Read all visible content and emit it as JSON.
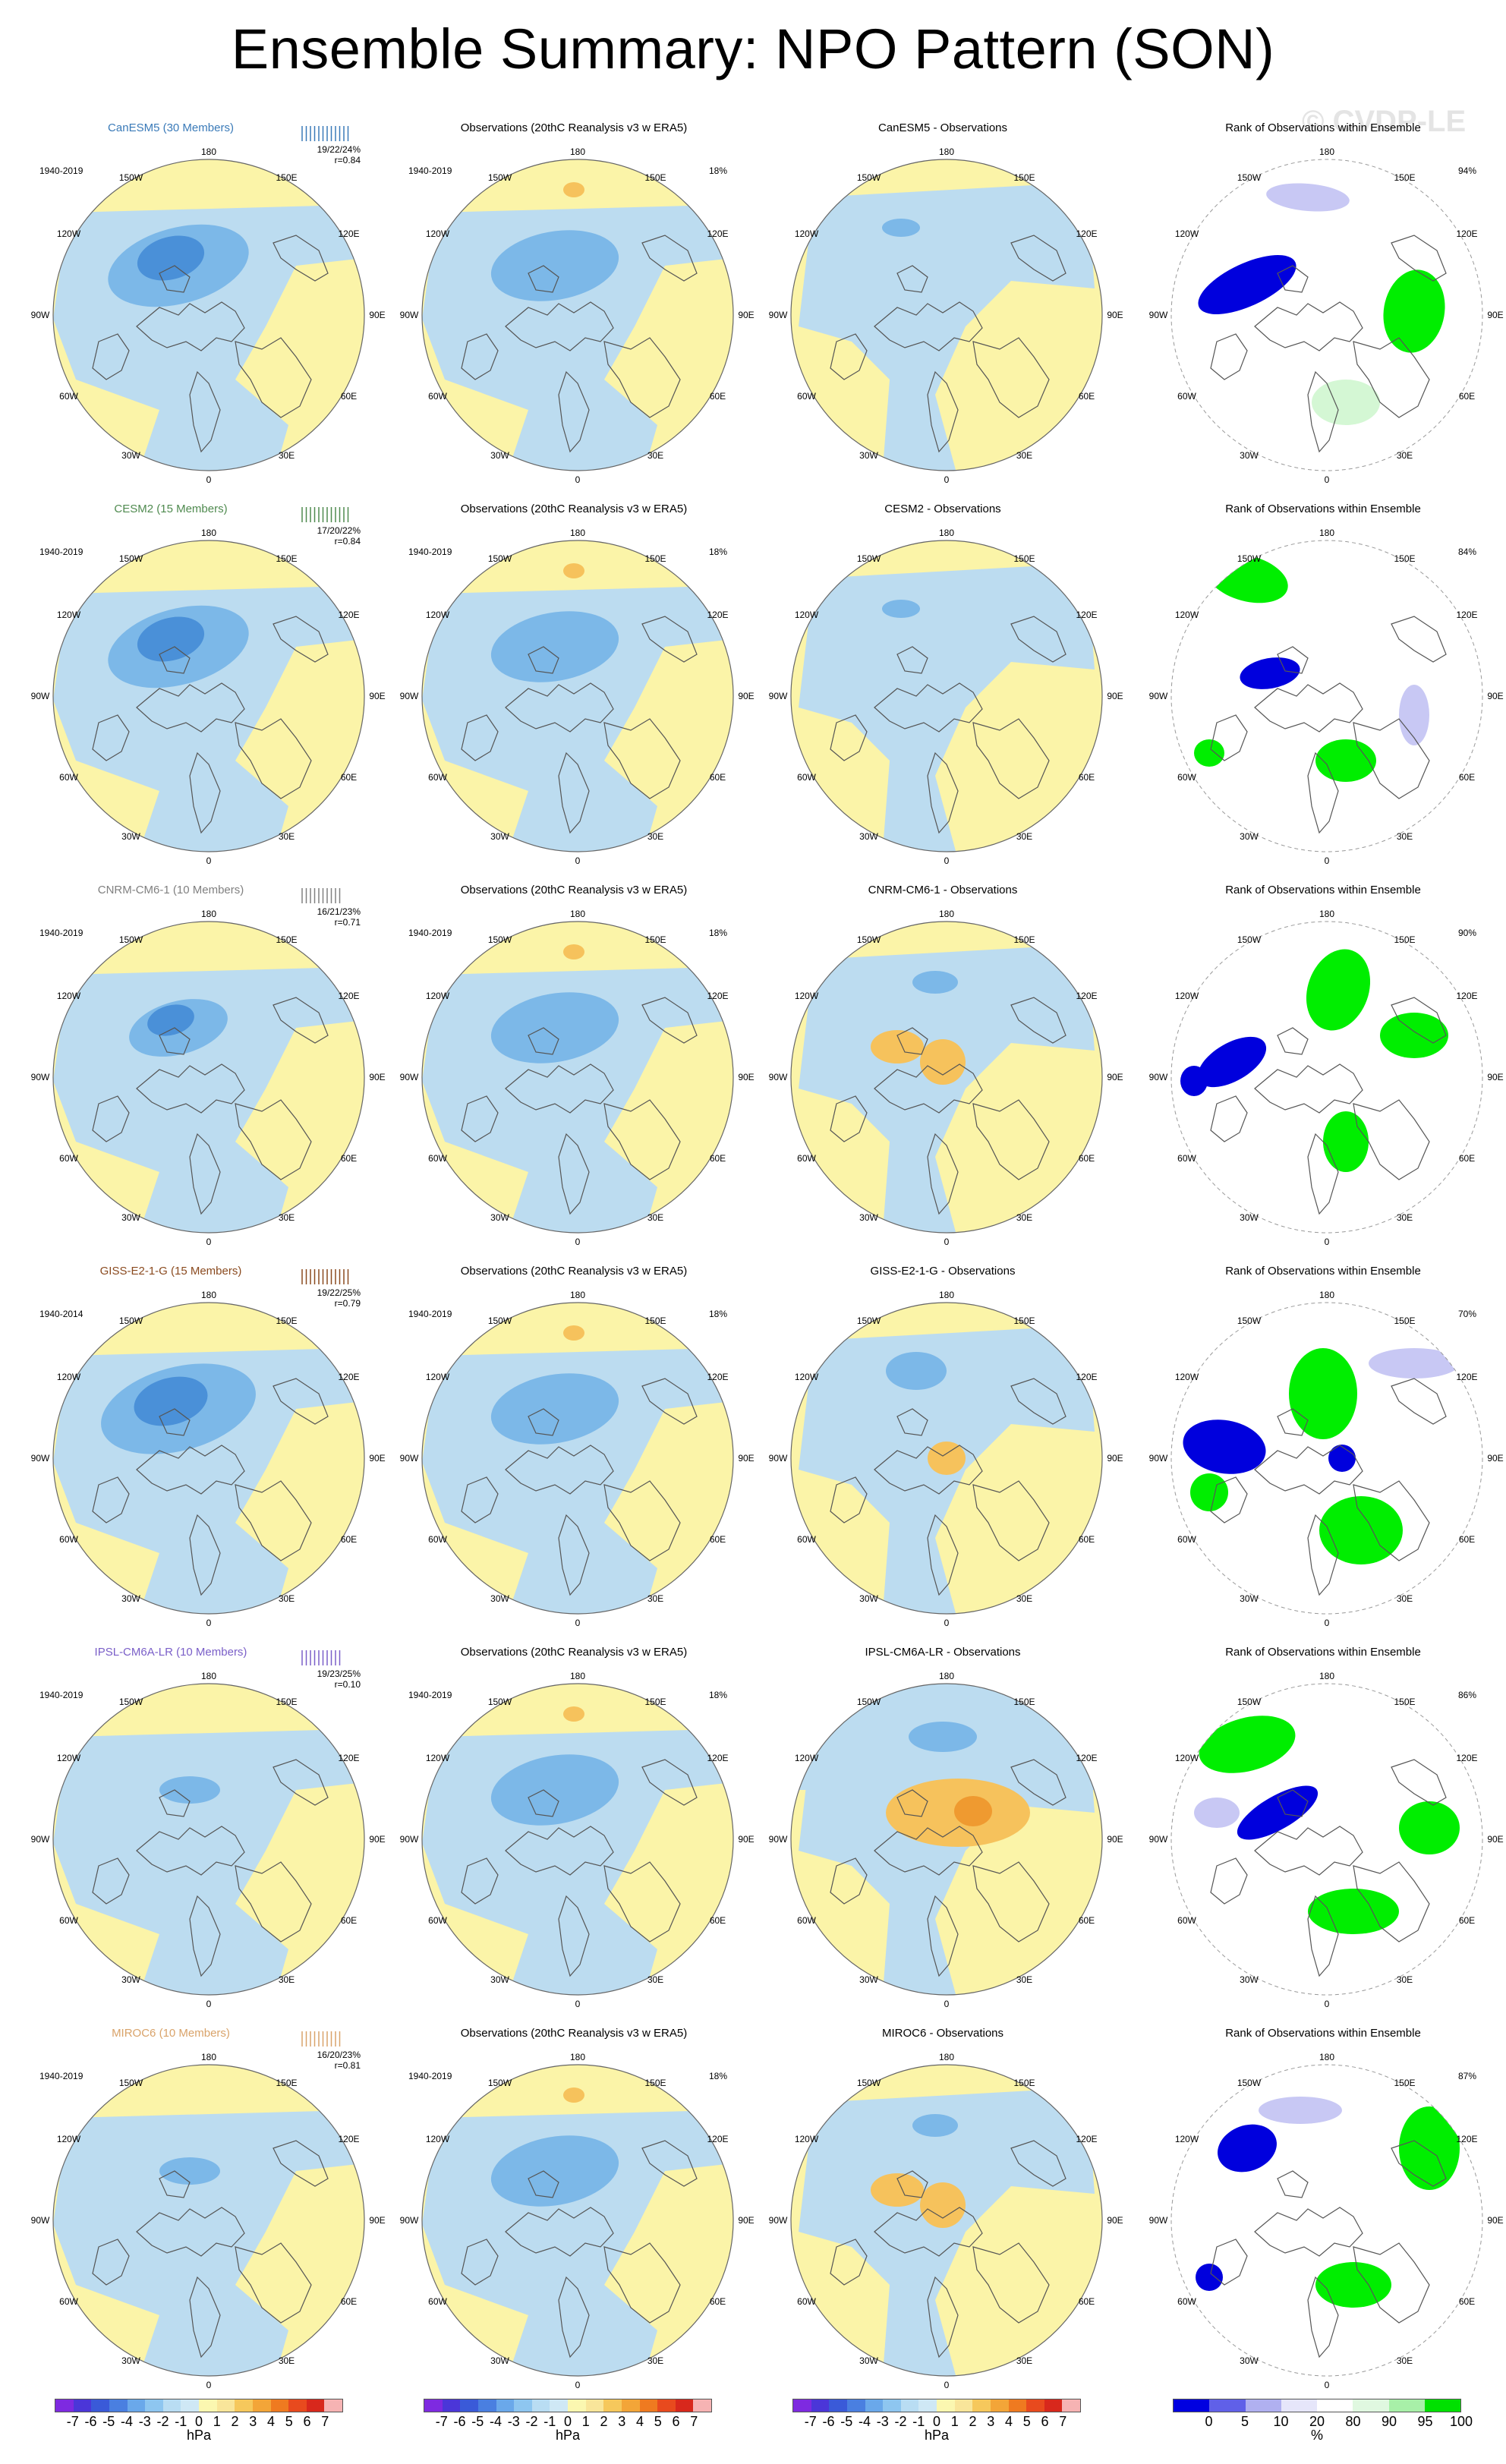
{
  "title": "Ensemble Summary: NPO Pattern (SON)",
  "watermark": "© CVDP-LE",
  "lon_labels": {
    "top": "180",
    "bottom": "0",
    "left": "90W",
    "right": "90E",
    "tl_outer": "150W",
    "tr_outer": "150E",
    "tl_inner": "120W",
    "tr_inner": "120E",
    "bl_inner": "60W",
    "br_inner": "60E",
    "bl_outer": "30W",
    "br_outer": "30E"
  },
  "rows": [
    {
      "model": {
        "title": "CanESM5 (30 Members)",
        "color": "#3a7ab8",
        "period": "1940-2019",
        "stats": "19/22/24%",
        "r": "r=0.84"
      },
      "obs": {
        "title": "Observations (20thC Reanalysis v3 w ERA5)",
        "period": "1940-2019",
        "pct": "18%"
      },
      "diff": {
        "title": "CanESM5 - Observations"
      },
      "rank": {
        "title": "Rank of Observations within Ensemble",
        "pct": "94%"
      }
    },
    {
      "model": {
        "title": "CESM2 (15 Members)",
        "color": "#4f8a4f",
        "period": "1940-2019",
        "stats": "17/20/22%",
        "r": "r=0.84"
      },
      "obs": {
        "title": "Observations (20thC Reanalysis v3 w ERA5)",
        "period": "1940-2019",
        "pct": "18%"
      },
      "diff": {
        "title": "CESM2 - Observations"
      },
      "rank": {
        "title": "Rank of Observations within Ensemble",
        "pct": "84%"
      }
    },
    {
      "model": {
        "title": "CNRM-CM6-1 (10 Members)",
        "color": "#808080",
        "period": "1940-2019",
        "stats": "16/21/23%",
        "r": "r=0.71"
      },
      "obs": {
        "title": "Observations (20thC Reanalysis v3 w ERA5)",
        "period": "1940-2019",
        "pct": "18%"
      },
      "diff": {
        "title": "CNRM-CM6-1 - Observations"
      },
      "rank": {
        "title": "Rank of Observations within Ensemble",
        "pct": "90%"
      }
    },
    {
      "model": {
        "title": "GISS-E2-1-G (15 Members)",
        "color": "#8a4a1f",
        "period": "1940-2014",
        "stats": "19/22/25%",
        "r": "r=0.79"
      },
      "obs": {
        "title": "Observations (20thC Reanalysis v3 w ERA5)",
        "period": "1940-2019",
        "pct": "18%"
      },
      "diff": {
        "title": "GISS-E2-1-G - Observations"
      },
      "rank": {
        "title": "Rank of Observations within Ensemble",
        "pct": "70%"
      }
    },
    {
      "model": {
        "title": "IPSL-CM6A-LR (10 Members)",
        "color": "#7a5fc8",
        "period": "1940-2019",
        "stats": "19/23/25%",
        "r": "r=0.10"
      },
      "obs": {
        "title": "Observations (20thC Reanalysis v3 w ERA5)",
        "period": "1940-2019",
        "pct": "18%"
      },
      "diff": {
        "title": "IPSL-CM6A-LR - Observations"
      },
      "rank": {
        "title": "Rank of Observations within Ensemble",
        "pct": "86%"
      }
    },
    {
      "model": {
        "title": "MIROC6 (10 Members)",
        "color": "#d9a36a",
        "period": "1940-2019",
        "stats": "16/20/23%",
        "r": "r=0.81"
      },
      "obs": {
        "title": "Observations (20thC Reanalysis v3 w ERA5)",
        "period": "1940-2019",
        "pct": "18%"
      },
      "diff": {
        "title": "MIROC6 - Observations"
      },
      "rank": {
        "title": "Rank of Observations within Ensemble",
        "pct": "87%"
      }
    }
  ],
  "colorbars": {
    "hpa": {
      "labels": [
        "-7",
        "-6",
        "-5",
        "-4",
        "-3",
        "-2",
        "-1",
        "0",
        "1",
        "2",
        "3",
        "4",
        "5",
        "6",
        "7"
      ],
      "colors": [
        "#7e2ae0",
        "#4b36d8",
        "#3a5ad8",
        "#4a7fe0",
        "#6aa8ea",
        "#8ec6f0",
        "#b9ddf3",
        "#cfe8f5",
        "#fbf7b0",
        "#f9e59a",
        "#f6c85c",
        "#f3a538",
        "#ef7a20",
        "#e84a1e",
        "#d8281c",
        "#f6b3b3"
      ],
      "unit": "hPa"
    },
    "rank": {
      "labels": [
        "0",
        "5",
        "10",
        "20",
        "80",
        "90",
        "95",
        "100"
      ],
      "colors": [
        "#0000e0",
        "#6060e8",
        "#b0b0f0",
        "#e6e6fa",
        "#ffffff",
        "#e0f8e0",
        "#a8f0a8",
        "#00e000"
      ],
      "unit": "%"
    }
  },
  "colors": {
    "ocean_blue": "#bcdcf0",
    "mid_blue": "#7cb8e8",
    "deep_blue": "#4a90d8",
    "yellow": "#fbf4a8",
    "orange": "#f6c25c",
    "dark_orange": "#ef9a30",
    "rank_blue": "#0000dd",
    "rank_lightblue": "#c8c8f4",
    "rank_green": "#00ee00",
    "rank_lightgreen": "#d4f7d4"
  }
}
